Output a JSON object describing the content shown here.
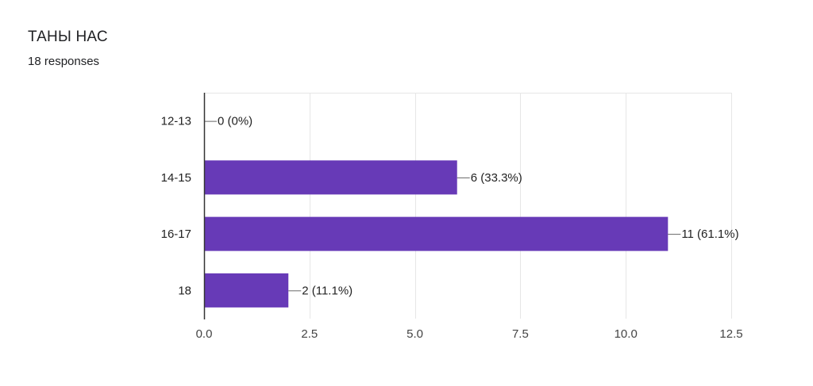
{
  "form": {
    "question_title": "ТАНЫ НАС",
    "responses_label": "18 responses"
  },
  "colors": {
    "bar": "#673ab7",
    "gridline": "#e6e6e6",
    "axis": "#333333",
    "leader": "#666666"
  },
  "chart_data": {
    "type": "bar",
    "orientation": "horizontal",
    "title": "",
    "xlabel": "",
    "ylabel": "",
    "categories": [
      "12-13",
      "14-15",
      "16-17",
      "18"
    ],
    "values": [
      0,
      6,
      11,
      2
    ],
    "data_labels": [
      "0 (0%)",
      "6 (33.3%)",
      "11 (61.1%)",
      "2 (11.1%)"
    ],
    "xlim": [
      0,
      12.5
    ],
    "xticks": [
      0,
      2.5,
      5,
      7.5,
      10,
      12.5
    ],
    "xtick_labels": [
      "0.0",
      "2.5",
      "5.0",
      "7.5",
      "10.0",
      "12.5"
    ],
    "grid": true,
    "legend": "none"
  }
}
